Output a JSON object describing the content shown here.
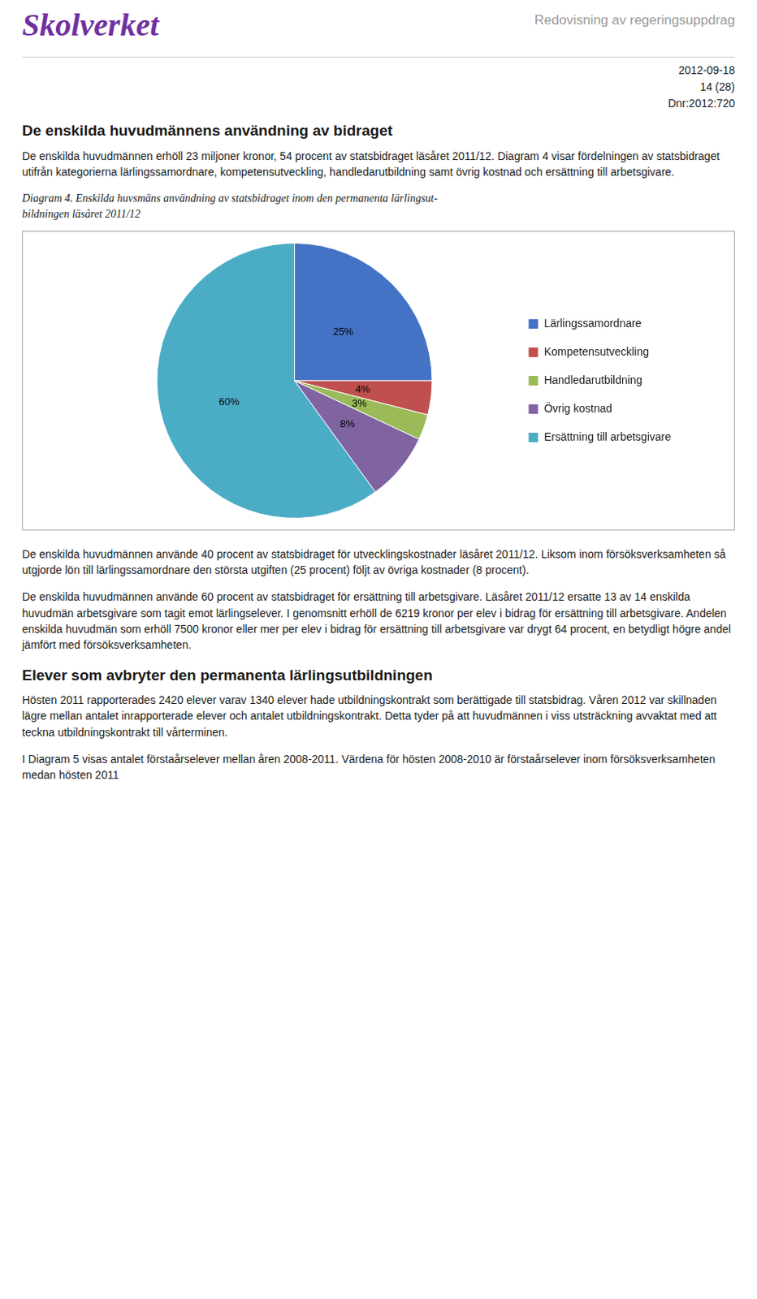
{
  "chart_data": {
    "type": "pie",
    "title": "Diagram 4. Enskilda huvsmäns användning av statsbidraget inom den permanenta lärlingsut-\nbildningen läsåret 2011/12",
    "categories": [
      "Lärlingssamordnare",
      "Kompetensutveckling",
      "Handledarutbildning",
      "Övrig kostnad",
      "Ersättning till arbetsgivare"
    ],
    "values": [
      25,
      4,
      3,
      8,
      60
    ],
    "value_labels": [
      "25%",
      "4%",
      "3%",
      "8%",
      "60%"
    ],
    "colors": [
      "#4472C4",
      "#C0504D",
      "#9BBB59",
      "#8064A2",
      "#4BACC6"
    ],
    "data_labels": true,
    "legend": "right",
    "annotations": [
      "Skolverket",
      "Redovisning av regeringsuppdrag",
      "2012-09-18\n14 (28)\nDnr:2012:720",
      "De enskilda huvudmännens användning av bidraget",
      "De enskilda huvudmännen erhöll 23 miljoner kronor, 54 procent av statsbidraget läsåret 2011/12. Diagram 4 visar fördelningen av statsbidraget utifrån kategorierna lärlingssamordnare, kompetensutveckling, handledarutbildning samt övrig kostnad och ersättning till arbetsgivare.",
      "De enskilda huvudmännen använde 40 procent av statsbidraget för utvecklingskostnader läsåret 2011/12. Liksom inom försöksverksamheten så utgjorde lön till lärlingssamordnare den största utgiften (25 procent) följt av övriga kostnader (8 procent).",
      "De enskilda huvudmännen använde 60 procent av statsbidraget för ersättning till arbetsgivare. Läsåret 2011/12 ersatte 13 av 14 enskilda huvudmän arbetsgivare som tagit emot lärlingselever. I genomsnitt erhöll de 6219 kronor per elev i bidrag för ersättning till arbetsgivare. Andelen enskilda huvudmän som erhöll 7500 kronor eller mer per elev i bidrag för ersättning till arbetsgivare var drygt 64 procent, en betydligt högre andel jämfört med försöksverksamheten.",
      "Elever som avbryter den permanenta lärlingsutbildningen",
      "Hösten 2011 rapporterades 2420 elever varav 1340 elever hade utbildningskontrakt som berättigade till statsbidrag. Våren 2012 var skillnaden lägre mellan antalet inrapporterade elever och antalet utbildningskontrakt. Detta tyder på att huvudmännen i viss utsträckning avvaktat med att teckna utbildningskontrakt till vårterminen.",
      "I Diagram 5 visas antalet förstaårselever mellan åren 2008-2011. Värdena för hösten 2008-2010 är förstaårselever inom försöksverksamheten medan hösten 2011"
    ]
  }
}
